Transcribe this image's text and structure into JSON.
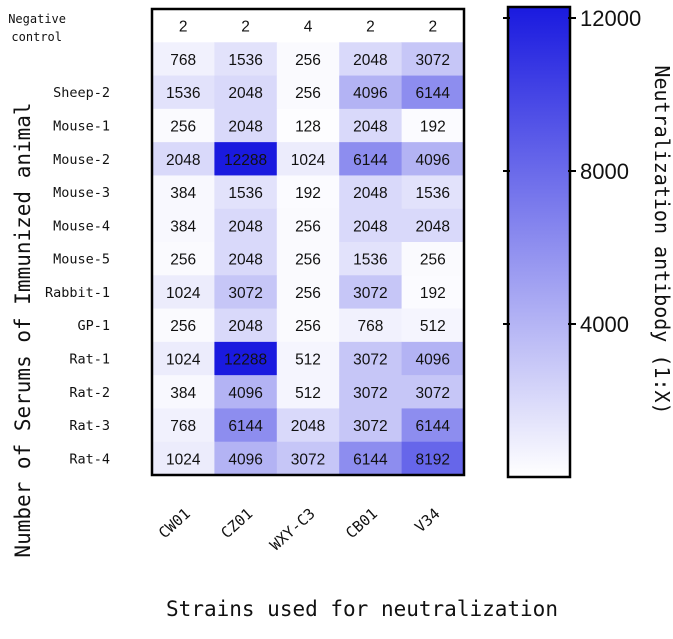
{
  "chart_data": {
    "type": "heatmap",
    "rows": [
      "Negative\ncontrol",
      "",
      "Sheep-2",
      "Mouse-1",
      "Mouse-2",
      "Mouse-3",
      "Mouse-4",
      "Mouse-5",
      "Rabbit-1",
      "GP-1",
      "Rat-1",
      "Rat-2",
      "Rat-3",
      "Rat-4"
    ],
    "columns": [
      "CW01",
      "CZ01",
      "WXY-C3",
      "CB01",
      "V34"
    ],
    "values": [
      [
        2,
        2,
        4,
        2,
        2
      ],
      [
        768,
        1536,
        256,
        2048,
        3072
      ],
      [
        1536,
        2048,
        256,
        4096,
        6144
      ],
      [
        256,
        2048,
        128,
        2048,
        192
      ],
      [
        2048,
        12288,
        1024,
        6144,
        4096
      ],
      [
        384,
        1536,
        192,
        2048,
        1536
      ],
      [
        384,
        2048,
        256,
        2048,
        2048
      ],
      [
        256,
        2048,
        256,
        1536,
        256
      ],
      [
        1024,
        3072,
        256,
        3072,
        192
      ],
      [
        256,
        2048,
        256,
        768,
        512
      ],
      [
        1024,
        12288,
        512,
        3072,
        4096
      ],
      [
        384,
        4096,
        512,
        3072,
        3072
      ],
      [
        768,
        6144,
        2048,
        3072,
        6144
      ],
      [
        1024,
        4096,
        3072,
        6144,
        8192
      ]
    ],
    "xlabel": "Strains used for neutralization",
    "ylabel": "Number of Serums of Immunized animal",
    "colorbar": {
      "label": "Neutralization antibody (1:X)",
      "range": [
        0,
        12288
      ],
      "ticks": [
        4000,
        8000,
        12000
      ],
      "low_color": "#ffffff",
      "high_color": "#1a1adf"
    }
  }
}
